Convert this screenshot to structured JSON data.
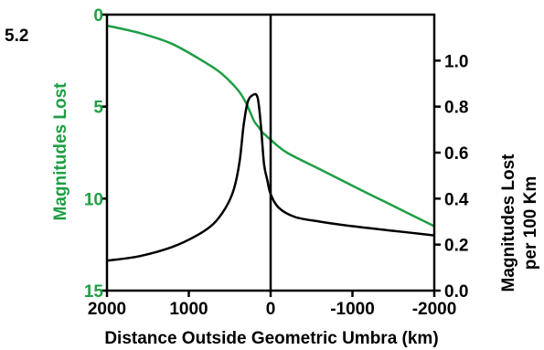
{
  "figure_number": "5.2",
  "colors": {
    "left_axis": "#1f9e45",
    "right_axis": "#000000"
  },
  "chart_data": {
    "type": "line",
    "xlabel": "Distance Outside Geometric Umbra (km)",
    "ylabel_left": "Magnitudes Lost",
    "ylabel_right_line1": "Magnitudes Lost",
    "ylabel_right_line2": "per 100 Km",
    "xlim": [
      2000,
      -2000
    ],
    "ylim_left": [
      0,
      15
    ],
    "ylim_right": [
      0.0,
      1.2
    ],
    "x_ticks": [
      "2000",
      "1000",
      "0",
      "-1000",
      "-2000"
    ],
    "left_ticks": [
      "0",
      "5",
      "10",
      "15"
    ],
    "right_ticks": [
      "0.0",
      "0.2",
      "0.4",
      "0.6",
      "0.8",
      "1.0"
    ],
    "vertical_line_x": 0,
    "series": [
      {
        "axis": "left",
        "color": "#1f9e45",
        "x": [
          2000,
          1600,
          1200,
          800,
          600,
          400,
          300,
          250,
          200,
          150,
          100,
          50,
          0,
          -200,
          -600,
          -1000,
          -1500,
          -2000
        ],
        "y": [
          0.6,
          1.0,
          1.6,
          2.6,
          3.2,
          4.1,
          4.8,
          5.3,
          5.8,
          6.1,
          6.4,
          6.6,
          6.8,
          7.5,
          8.4,
          9.3,
          10.4,
          11.5
        ]
      },
      {
        "axis": "right",
        "color": "#000000",
        "x": [
          2000,
          1600,
          1200,
          900,
          700,
          550,
          450,
          380,
          330,
          280,
          220,
          160,
          120,
          80,
          40,
          0,
          -100,
          -300,
          -600,
          -1000,
          -1500,
          -2000
        ],
        "y": [
          0.13,
          0.15,
          0.19,
          0.24,
          0.29,
          0.36,
          0.44,
          0.56,
          0.72,
          0.82,
          0.85,
          0.84,
          0.72,
          0.55,
          0.48,
          0.42,
          0.36,
          0.32,
          0.3,
          0.28,
          0.26,
          0.24
        ]
      }
    ]
  }
}
